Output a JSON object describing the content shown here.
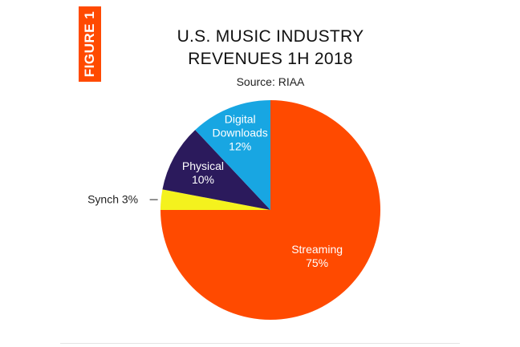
{
  "chart_data": {
    "type": "pie",
    "figure_label": "FIGURE 1",
    "title": [
      "U.S. MUSIC INDUSTRY",
      "REVENUES 1H 2018"
    ],
    "subtitle": "Source: RIAA",
    "categories": [
      "Streaming",
      "Synch",
      "Physical",
      "Digital Downloads"
    ],
    "values": [
      75,
      3,
      10,
      12
    ],
    "value_labels": [
      "75%",
      "3%",
      "10%",
      "12%"
    ],
    "colors": [
      "#ff4a00",
      "#f4f21e",
      "#2b1a5c",
      "#18a6e2"
    ]
  }
}
